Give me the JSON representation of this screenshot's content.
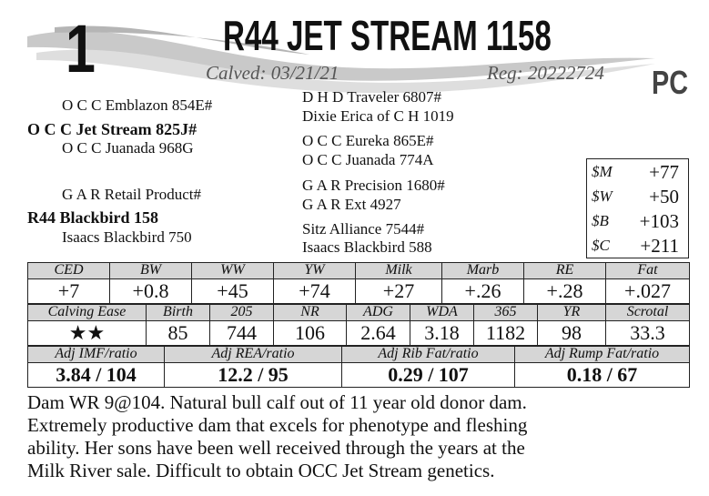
{
  "lot_number": "1",
  "title": "R44 JET STREAM 1158",
  "calved": "Calved: 03/21/21",
  "registration": "Reg: 20222724",
  "tag": "PC",
  "pedigree": [
    "O C C Emblazon 854E#",
    "O C C Jet Stream 825J#",
    "O C C Juanada 968G",
    "G A R Retail Product#",
    "R44 Blackbird 158",
    "Isaacs Blackbird 750",
    "D H D Traveler 6807#",
    "Dixie Erica of C H 1019",
    "O C C Eureka 865E#",
    "O C C Juanada 774A",
    "G A R Precision 1680#",
    "G A R Ext 4927",
    "Sitz Alliance 7544#",
    "Isaacs Blackbird 588"
  ],
  "dollar_indexes": [
    {
      "label": "$M",
      "value": "+77"
    },
    {
      "label": "$W",
      "value": "+50"
    },
    {
      "label": "$B",
      "value": "+103"
    },
    {
      "label": "$C",
      "value": "+211"
    }
  ],
  "epd_table": {
    "headers": [
      "CED",
      "BW",
      "WW",
      "YW",
      "Milk",
      "Marb",
      "RE",
      "Fat"
    ],
    "values": [
      "+7",
      "+0.8",
      "+45",
      "+74",
      "+27",
      "+.26",
      "+.28",
      "+.027"
    ]
  },
  "performance_table": {
    "headers": [
      "Calving Ease",
      "Birth",
      "205",
      "NR",
      "ADG",
      "WDA",
      "365",
      "YR",
      "Scrotal"
    ],
    "values": [
      "★★",
      "85",
      "744",
      "106",
      "2.64",
      "3.18",
      "1182",
      "98",
      "33.3"
    ]
  },
  "ratio_table": {
    "headers": [
      "Adj IMF/ratio",
      "Adj REA/ratio",
      "Adj Rib Fat/ratio",
      "Adj Rump Fat/ratio"
    ],
    "values": [
      "3.84 / 104",
      "12.2 / 95",
      "0.29 / 107",
      "0.18 / 67"
    ]
  },
  "notes": [
    "Dam WR 9@104. Natural bull calf out of 11 year old donor dam.",
    "Extremely productive dam that excels for phenotype and fleshing",
    "ability. Her sons have been well received through the years at the",
    "Milk River sale. Difficult to obtain OCC Jet Stream genetics."
  ]
}
